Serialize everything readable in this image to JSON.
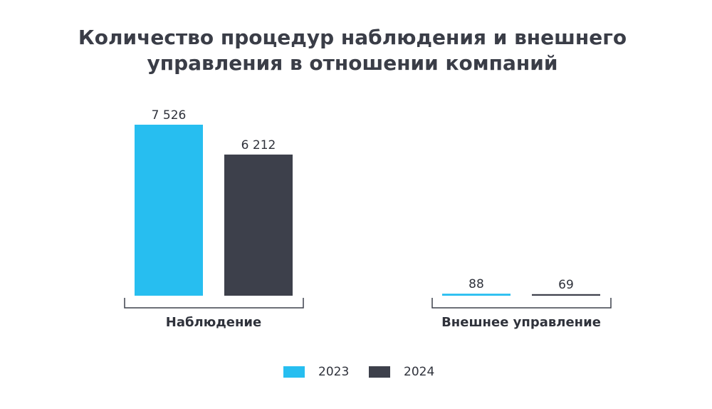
{
  "chart_data": {
    "type": "bar",
    "title": [
      "Количество процедур наблюдения и внешнего",
      "управления в отношении компаний"
    ],
    "categories": [
      "Наблюдение",
      "Внешнее управление"
    ],
    "series": [
      {
        "name": "2023",
        "color": "#27bef0",
        "values": [
          7526,
          88
        ],
        "value_labels": [
          "7 526",
          "88"
        ]
      },
      {
        "name": "2024",
        "color": "#3d404b",
        "values": [
          6212,
          69
        ],
        "value_labels": [
          "6 212",
          "69"
        ]
      }
    ],
    "legend": "bottom"
  }
}
